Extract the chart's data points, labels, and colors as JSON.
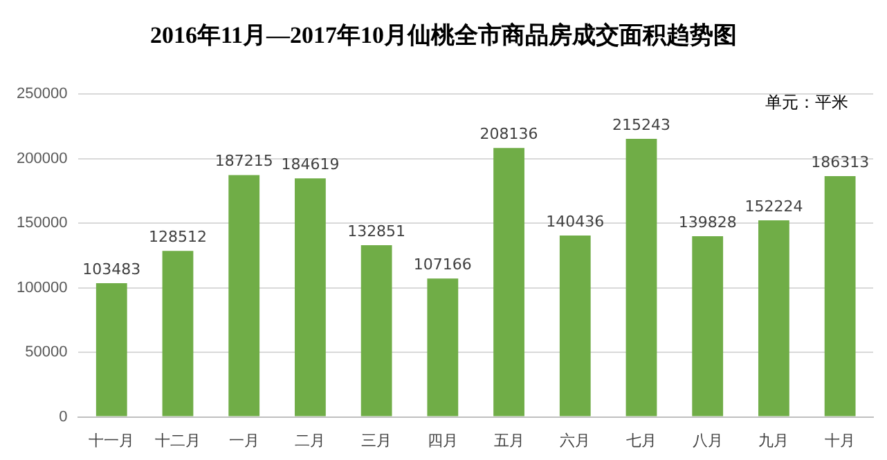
{
  "chart_data": {
    "type": "bar",
    "title": "2016年11月—2017年10月仙桃全市商品房成交面积趋势图",
    "categories": [
      "十一月",
      "十二月",
      "一月",
      "二月",
      "三月",
      "四月",
      "五月",
      "六月",
      "七月",
      "八月",
      "九月",
      "十月"
    ],
    "values": [
      103483,
      128512,
      187215,
      184619,
      132851,
      107166,
      208136,
      140436,
      215243,
      139828,
      152224,
      186313
    ],
    "color": "#70ad47",
    "ylim": [
      0,
      250000
    ],
    "yticks": [
      0,
      50000,
      100000,
      150000,
      200000,
      250000
    ],
    "grid": "y",
    "data_labels": true,
    "legend": false,
    "annotations": [
      "单元：平米"
    ]
  }
}
